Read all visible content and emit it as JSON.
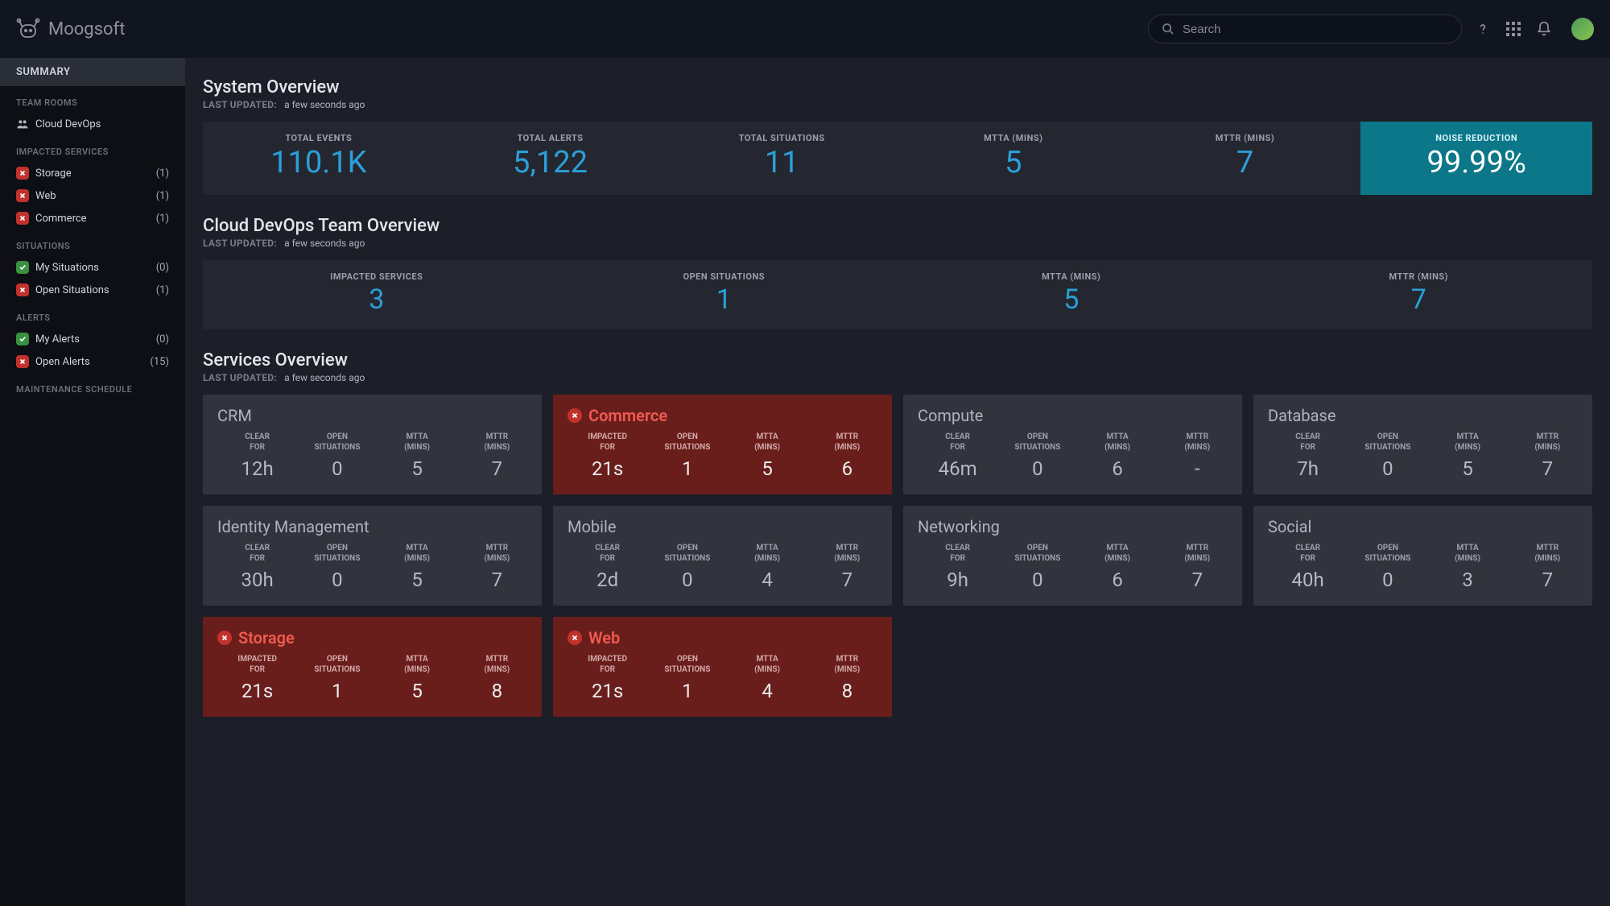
{
  "brand": "Moogsoft",
  "search": {
    "placeholder": "Search"
  },
  "sidebar": {
    "summary": "Summary",
    "sections": {
      "team_rooms": {
        "header": "Team Rooms",
        "items": [
          {
            "label": "Cloud DevOps"
          }
        ]
      },
      "impacted_services": {
        "header": "Impacted Services",
        "items": [
          {
            "label": "Storage",
            "count": "(1)",
            "status": "red"
          },
          {
            "label": "Web",
            "count": "(1)",
            "status": "red"
          },
          {
            "label": "Commerce",
            "count": "(1)",
            "status": "red"
          }
        ]
      },
      "situations": {
        "header": "Situations",
        "items": [
          {
            "label": "My Situations",
            "count": "(0)",
            "status": "green"
          },
          {
            "label": "Open Situations",
            "count": "(1)",
            "status": "red"
          }
        ]
      },
      "alerts": {
        "header": "Alerts",
        "items": [
          {
            "label": "My Alerts",
            "count": "(0)",
            "status": "green"
          },
          {
            "label": "Open Alerts",
            "count": "(15)",
            "status": "red"
          }
        ]
      },
      "maintenance": {
        "header": "Maintenance Schedule"
      }
    }
  },
  "system_overview": {
    "title": "System Overview",
    "last_updated_label": "Last Updated:",
    "last_updated": "a few seconds ago",
    "stats": [
      {
        "label": "Total Events",
        "value": "110.1K"
      },
      {
        "label": "Total Alerts",
        "value": "5,122"
      },
      {
        "label": "Total Situations",
        "value": "11"
      },
      {
        "label": "MTTA (Mins)",
        "value": "5"
      },
      {
        "label": "MTTR (Mins)",
        "value": "7"
      },
      {
        "label": "Noise Reduction",
        "value": "99.99%",
        "highlight": true
      }
    ]
  },
  "team_overview": {
    "title": "Cloud DevOps Team Overview",
    "last_updated_label": "Last Updated:",
    "last_updated": "a few seconds ago",
    "stats": [
      {
        "label": "Impacted Services",
        "value": "3"
      },
      {
        "label": "Open Situations",
        "value": "1"
      },
      {
        "label": "MTTA (Mins)",
        "value": "5"
      },
      {
        "label": "MTTR (Mins)",
        "value": "7"
      }
    ]
  },
  "services_overview": {
    "title": "Services Overview",
    "last_updated_label": "Last Updated:",
    "last_updated": "a few seconds ago",
    "col_labels": {
      "clear_for": "Clear For",
      "impacted_for": "Impacted For",
      "open_situations": "Open Situations",
      "mtta": "MTTA (Mins)",
      "mttr": "MTTR (Mins)"
    },
    "services": [
      {
        "name": "CRM",
        "impacted": false,
        "time": "12h",
        "open": "0",
        "mtta": "5",
        "mttr": "7"
      },
      {
        "name": "Commerce",
        "impacted": true,
        "time": "21s",
        "open": "1",
        "mtta": "5",
        "mttr": "6"
      },
      {
        "name": "Compute",
        "impacted": false,
        "time": "46m",
        "open": "0",
        "mtta": "6",
        "mttr": "-"
      },
      {
        "name": "Database",
        "impacted": false,
        "time": "7h",
        "open": "0",
        "mtta": "5",
        "mttr": "7"
      },
      {
        "name": "Identity Management",
        "impacted": false,
        "time": "30h",
        "open": "0",
        "mtta": "5",
        "mttr": "7"
      },
      {
        "name": "Mobile",
        "impacted": false,
        "time": "2d",
        "open": "0",
        "mtta": "4",
        "mttr": "7"
      },
      {
        "name": "Networking",
        "impacted": false,
        "time": "9h",
        "open": "0",
        "mtta": "6",
        "mttr": "7"
      },
      {
        "name": "Social",
        "impacted": false,
        "time": "40h",
        "open": "0",
        "mtta": "3",
        "mttr": "7"
      },
      {
        "name": "Storage",
        "impacted": true,
        "time": "21s",
        "open": "1",
        "mtta": "5",
        "mttr": "8"
      },
      {
        "name": "Web",
        "impacted": true,
        "time": "21s",
        "open": "1",
        "mtta": "4",
        "mttr": "8"
      }
    ]
  },
  "colors": {
    "accent": "#2b9fd9",
    "highlight_bg": "#0b7789",
    "impacted_bg": "#6a1e1c",
    "impacted_text": "#f05a4f",
    "red": "#c2322d",
    "green": "#39903e"
  }
}
